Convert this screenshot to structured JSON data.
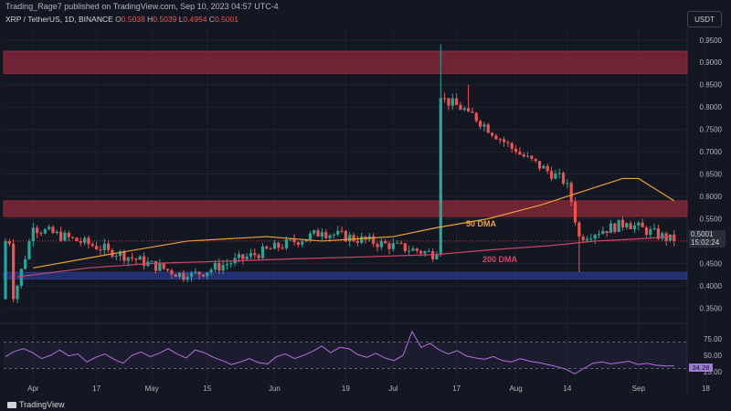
{
  "header": {
    "published": "Trading_Rage7 published on TradingView.com, Sep 10, 2023 04:57 UTC-4"
  },
  "legend": {
    "symbol": "XRP / TetherUS, 1D, BINANCE",
    "o_label": "O",
    "o_value": "0.5038",
    "h_label": "H",
    "h_value": "0.5039",
    "l_label": "L",
    "l_value": "0.4954",
    "c_label": "C",
    "c_value": "0.5001"
  },
  "currency_button": "USDT",
  "last_price": {
    "value": "0.5001",
    "countdown": "15:02:24"
  },
  "rsi_value": "34.28",
  "footer": {
    "brand": "TradingView"
  },
  "colors": {
    "background": "#131722",
    "up": "#26a69a",
    "down": "#ef5350",
    "resistance_zone": "#8e2a3a",
    "support_zone": "#2a3a8a",
    "dma50": "#f0a030",
    "dma200": "#d0456a",
    "rsi": "#b46ee0"
  },
  "chart_data": [
    {
      "type": "candlestick",
      "title": "XRP / TetherUS, 1D, BINANCE",
      "x_tick_labels": [
        "Apr",
        "17",
        "May",
        "15",
        "Jun",
        "19",
        "Jul",
        "17",
        "Aug",
        "14",
        "Sep",
        "18"
      ],
      "y_tick_labels": [
        "0.9500",
        "0.9000",
        "0.8500",
        "0.8000",
        "0.7500",
        "0.7000",
        "0.6500",
        "0.6000",
        "0.5500",
        "0.4500",
        "0.4000",
        "0.3500"
      ],
      "ylim": [
        0.32,
        0.97
      ],
      "zones": [
        {
          "from": 0.875,
          "to": 0.925,
          "kind": "resistance"
        },
        {
          "from": 0.555,
          "to": 0.59,
          "kind": "resistance"
        },
        {
          "from": 0.415,
          "to": 0.43,
          "kind": "support"
        }
      ],
      "annotations": [
        "50 DMA",
        "200 DMA"
      ],
      "key_points": [
        {
          "date": "Mar 27",
          "close": 0.37
        },
        {
          "date": "Apr 1",
          "close": 0.53
        },
        {
          "date": "Apr 20",
          "close": 0.48
        },
        {
          "date": "May 10",
          "close": 0.42
        },
        {
          "date": "Jun 13",
          "close": 0.52
        },
        {
          "date": "Jul 12",
          "close": 0.47
        },
        {
          "date": "Jul 13",
          "close": 0.82,
          "high": 0.94
        },
        {
          "date": "Jul 20",
          "close": 0.79,
          "high": 0.85
        },
        {
          "date": "Aug 1",
          "close": 0.7
        },
        {
          "date": "Aug 14",
          "close": 0.63
        },
        {
          "date": "Aug 17",
          "close": 0.51,
          "low": 0.43
        },
        {
          "date": "Aug 29",
          "close": 0.54
        },
        {
          "date": "Sep 10",
          "close": 0.5001
        }
      ],
      "series": [
        {
          "name": "50 DMA",
          "values": [
            0.44,
            0.47,
            0.5,
            0.51,
            0.5,
            0.51,
            0.53,
            0.55,
            0.58,
            0.62,
            0.64,
            0.64,
            0.59
          ],
          "x_dates": [
            "Apr 1",
            "Apr 20",
            "May 10",
            "May 30",
            "Jun 13",
            "Jul 1",
            "Jul 12",
            "Jul 25",
            "Aug 7",
            "Aug 21",
            "Aug 28",
            "Sep 1",
            "Sep 10"
          ]
        },
        {
          "name": "200 DMA",
          "values": [
            0.42,
            0.44,
            0.45,
            0.455,
            0.46,
            0.465,
            0.47,
            0.48,
            0.49,
            0.5,
            0.505,
            0.51
          ],
          "x_dates": [
            "Mar 28",
            "Apr 15",
            "May 1",
            "May 20",
            "Jun 5",
            "Jun 25",
            "Jul 12",
            "Jul 25",
            "Aug 10",
            "Aug 21",
            "Sep 1",
            "Sep 10"
          ]
        }
      ]
    },
    {
      "type": "line",
      "title": "RSI",
      "y_tick_labels": [
        "75.00",
        "50.00",
        "25.00"
      ],
      "ylim": [
        10,
        90
      ],
      "levels": [
        70,
        30
      ],
      "series": [
        {
          "name": "RSI",
          "last": 34.28,
          "values": [
            48,
            56,
            60,
            54,
            45,
            50,
            58,
            49,
            52,
            40,
            47,
            52,
            44,
            38,
            50,
            55,
            48,
            53,
            60,
            52,
            46,
            58,
            54,
            47,
            42,
            36,
            40,
            45,
            39,
            37,
            48,
            52,
            45,
            50,
            56,
            64,
            54,
            62,
            60,
            51,
            47,
            53,
            46,
            42,
            50,
            86,
            62,
            68,
            58,
            52,
            57,
            49,
            46,
            44,
            48,
            42,
            40,
            45,
            41,
            39,
            36,
            33,
            29,
            22,
            30,
            38,
            40,
            37,
            39,
            41,
            36,
            38,
            35,
            34,
            34
          ]
        }
      ]
    }
  ]
}
